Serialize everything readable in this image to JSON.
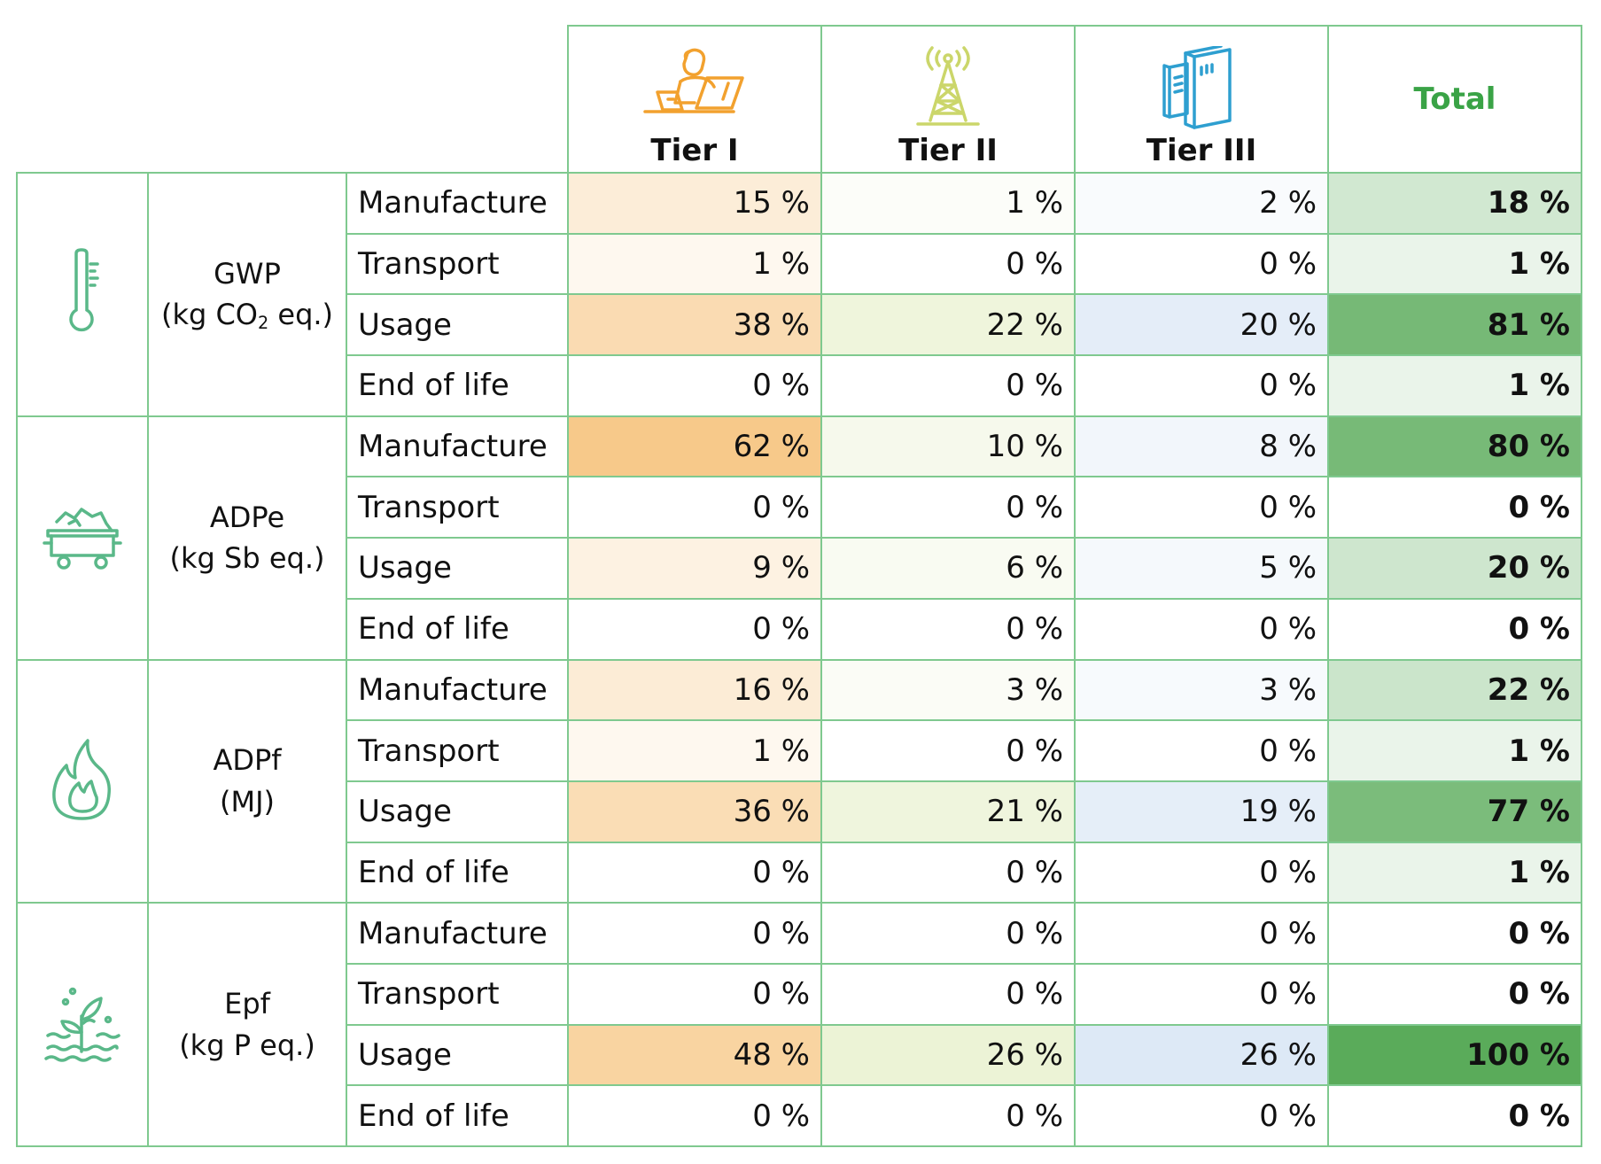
{
  "header": {
    "tiers": [
      "Tier I",
      "Tier II",
      "Tier III"
    ],
    "total": "Total"
  },
  "tier_icons": [
    "person-laptop-icon",
    "antenna-tower-icon",
    "server-rack-icon"
  ],
  "categories": [
    {
      "icon": "thermometer-icon",
      "name": "GWP",
      "unit_prefix": "(kg CO",
      "unit_sub": "2",
      "unit_suffix": " eq.)",
      "rows": [
        {
          "stage": "Manufacture",
          "t1": "15 %",
          "t2": "1 %",
          "t3": "2 %",
          "total": "18 %"
        },
        {
          "stage": "Transport",
          "t1": "1 %",
          "t2": "0 %",
          "t3": "0 %",
          "total": "1 %"
        },
        {
          "stage": "Usage",
          "t1": "38 %",
          "t2": "22 %",
          "t3": "20 %",
          "total": "81 %"
        },
        {
          "stage": "End of life",
          "t1": "0 %",
          "t2": "0 %",
          "t3": "0 %",
          "total": "1 %"
        }
      ]
    },
    {
      "icon": "mine-cart-icon",
      "name": "ADPe",
      "unit_prefix": "(kg Sb eq.)",
      "unit_sub": "",
      "unit_suffix": "",
      "rows": [
        {
          "stage": "Manufacture",
          "t1": "62 %",
          "t2": "10 %",
          "t3": "8 %",
          "total": "80 %"
        },
        {
          "stage": "Transport",
          "t1": "0 %",
          "t2": "0 %",
          "t3": "0 %",
          "total": "0 %"
        },
        {
          "stage": "Usage",
          "t1": "9 %",
          "t2": "6 %",
          "t3": "5 %",
          "total": "20 %"
        },
        {
          "stage": "End of life",
          "t1": "0 %",
          "t2": "0 %",
          "t3": "0 %",
          "total": "0 %"
        }
      ]
    },
    {
      "icon": "flame-icon",
      "name": "ADPf",
      "unit_prefix": "(MJ)",
      "unit_sub": "",
      "unit_suffix": "",
      "rows": [
        {
          "stage": "Manufacture",
          "t1": "16 %",
          "t2": "3 %",
          "t3": "3 %",
          "total": "22 %"
        },
        {
          "stage": "Transport",
          "t1": "1 %",
          "t2": "0 %",
          "t3": "0 %",
          "total": "1 %"
        },
        {
          "stage": "Usage",
          "t1": "36 %",
          "t2": "21 %",
          "t3": "19 %",
          "total": "77 %"
        },
        {
          "stage": "End of life",
          "t1": "0 %",
          "t2": "0 %",
          "t3": "0 %",
          "total": "1 %"
        }
      ]
    },
    {
      "icon": "plant-water-icon",
      "name": "Epf",
      "unit_prefix": "(kg P eq.)",
      "unit_sub": "",
      "unit_suffix": "",
      "rows": [
        {
          "stage": "Manufacture",
          "t1": "0 %",
          "t2": "0 %",
          "t3": "0 %",
          "total": "0 %"
        },
        {
          "stage": "Transport",
          "t1": "0 %",
          "t2": "0 %",
          "t3": "0 %",
          "total": "0 %"
        },
        {
          "stage": "Usage",
          "t1": "48 %",
          "t2": "26 %",
          "t3": "26 %",
          "total": "100 %"
        },
        {
          "stage": "End of life",
          "t1": "0 %",
          "t2": "0 %",
          "t3": "0 %",
          "total": "0 %"
        }
      ]
    }
  ],
  "colors": {
    "border": "#7fc98f",
    "total_label": "#3aa346",
    "tier1_max": "#f7c98a",
    "tier2_max": "#ecf3d6",
    "tier3_max": "#dde9f6",
    "total_max": "#5aab5a",
    "icon_green": "#5ab889",
    "icon_orange": "#f2a12e",
    "icon_yellowgreen": "#cbd66a",
    "icon_blue": "#2e9fd0"
  }
}
